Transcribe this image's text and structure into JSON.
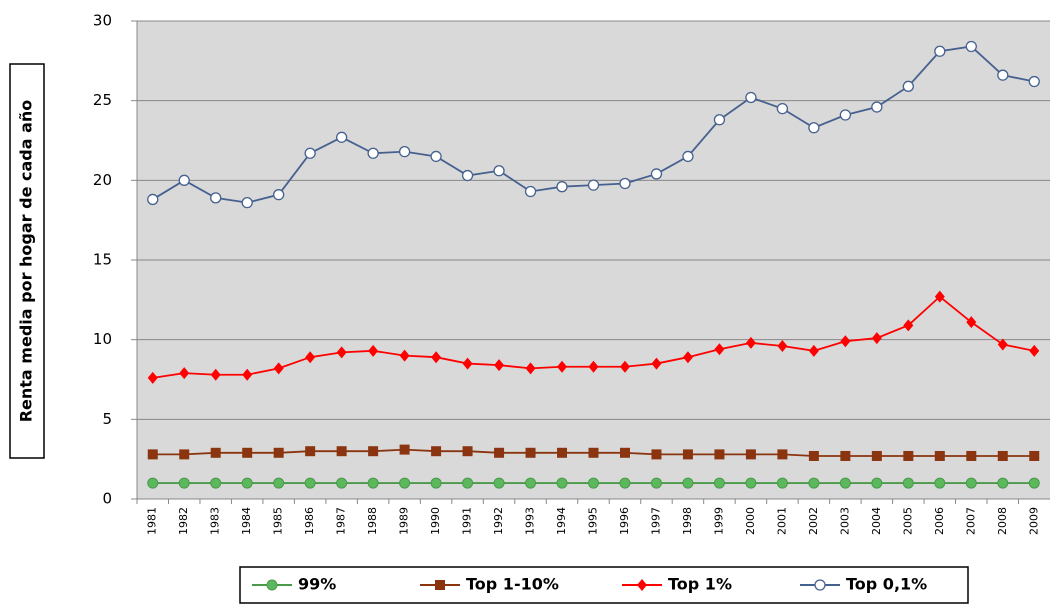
{
  "chart_data": {
    "type": "line",
    "y_label": "Renta media por hogar de cada año",
    "categories": [
      "1981",
      "1982",
      "1983",
      "1984",
      "1985",
      "1986",
      "1987",
      "1988",
      "1989",
      "1990",
      "1991",
      "1992",
      "1993",
      "1994",
      "1995",
      "1996",
      "1997",
      "1998",
      "1999",
      "2000",
      "2001",
      "2002",
      "2003",
      "2004",
      "2005",
      "2006",
      "2007",
      "2008",
      "2009"
    ],
    "series": [
      {
        "name": "99%",
        "color": "#4a9a4a",
        "marker": "circle",
        "values": [
          1.0,
          1.0,
          1.0,
          1.0,
          1.0,
          1.0,
          1.0,
          1.0,
          1.0,
          1.0,
          1.0,
          1.0,
          1.0,
          1.0,
          1.0,
          1.0,
          1.0,
          1.0,
          1.0,
          1.0,
          1.0,
          1.0,
          1.0,
          1.0,
          1.0,
          1.0,
          1.0,
          1.0,
          1.0
        ]
      },
      {
        "name": "Top 1-10%",
        "color": "#8b3510",
        "marker": "square",
        "values": [
          2.8,
          2.8,
          2.9,
          2.9,
          2.9,
          3.0,
          3.0,
          3.0,
          3.1,
          3.0,
          3.0,
          2.9,
          2.9,
          2.9,
          2.9,
          2.9,
          2.8,
          2.8,
          2.8,
          2.8,
          2.8,
          2.7,
          2.7,
          2.7,
          2.7,
          2.7,
          2.7,
          2.7,
          2.7
        ]
      },
      {
        "name": "Top 1%",
        "color": "#ff0000",
        "marker": "diamond",
        "values": [
          7.6,
          7.9,
          7.8,
          7.8,
          8.2,
          8.9,
          9.2,
          9.3,
          9.0,
          8.9,
          8.5,
          8.4,
          8.2,
          8.3,
          8.3,
          8.3,
          8.5,
          8.9,
          9.4,
          9.8,
          9.6,
          9.3,
          9.9,
          10.1,
          10.9,
          12.7,
          11.1,
          9.7,
          9.3
        ]
      },
      {
        "name": "Top 0,1%",
        "color": "#46618f",
        "marker": "open-circle",
        "values": [
          18.8,
          20.0,
          18.9,
          18.6,
          19.1,
          21.7,
          22.7,
          21.7,
          21.8,
          21.5,
          20.3,
          20.6,
          19.3,
          19.6,
          19.7,
          19.8,
          20.4,
          21.5,
          23.8,
          25.2,
          24.5,
          23.3,
          24.1,
          24.6,
          25.9,
          28.1,
          28.4,
          26.6,
          26.2
        ]
      }
    ],
    "ylim": [
      0,
      30
    ],
    "yticks": [
      0,
      5,
      10,
      15,
      20,
      25,
      30
    ],
    "grid": true
  }
}
